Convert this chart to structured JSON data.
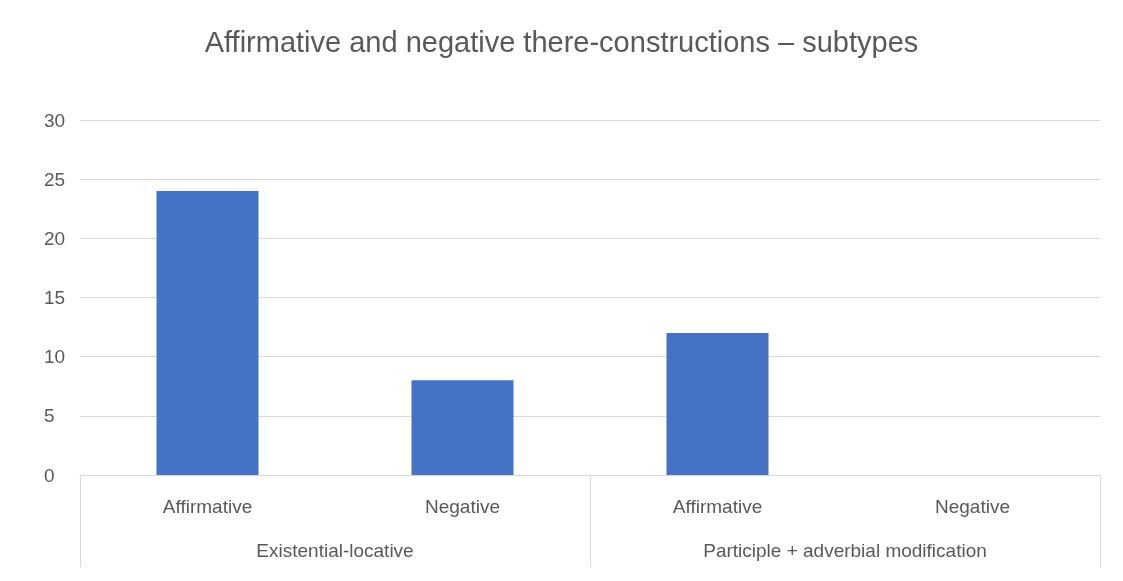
{
  "chart_data": {
    "type": "bar",
    "title": "Affirmative and negative there-constructions – subtypes",
    "categories": [
      "Affirmative",
      "Negative",
      "Affirmative",
      "Negative"
    ],
    "values": [
      24,
      8,
      12,
      0
    ],
    "color": "#4472c4",
    "annotations": [
      "Existential-locative",
      "Participle + adverbial modification"
    ],
    "ylim": [
      0,
      30
    ],
    "yticks": [
      0,
      5,
      10,
      15,
      20,
      25,
      30
    ],
    "grid": "y"
  }
}
